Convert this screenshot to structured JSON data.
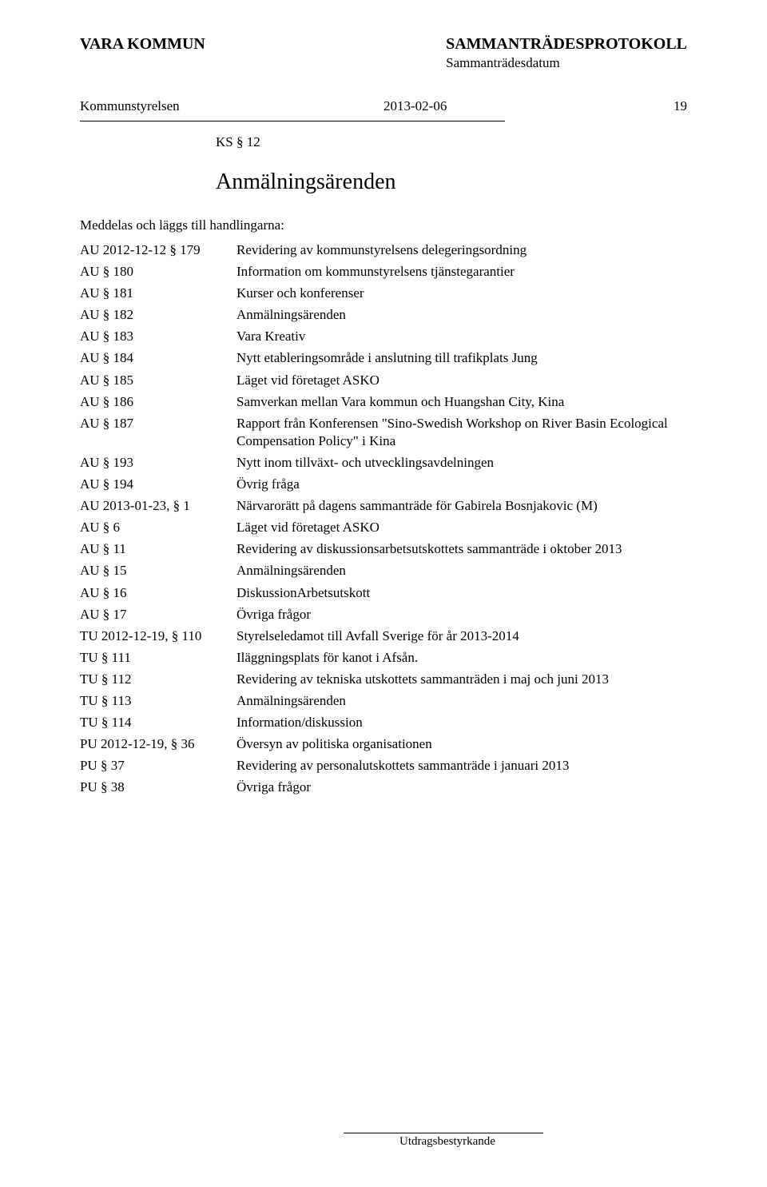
{
  "header": {
    "org": "VARA KOMMUN",
    "doc_type": "SAMMANTRÄDESPROTOKOLL",
    "doc_sub": "Sammanträdesdatum"
  },
  "meta": {
    "committee": "Kommunstyrelsen",
    "date": "2013-02-06",
    "page": "19"
  },
  "section_ref": "KS § 12",
  "title": "Anmälningsärenden",
  "intro": "Meddelas och läggs till handlingarna:",
  "items": [
    {
      "ref": "AU 2012-12-12 § 179",
      "subj": "Revidering av kommunstyrelsens delegeringsordning"
    },
    {
      "ref": "AU § 180",
      "subj": "Information om kommunstyrelsens tjänstegarantier"
    },
    {
      "ref": "AU § 181",
      "subj": "Kurser och konferenser"
    },
    {
      "ref": "AU § 182",
      "subj": "Anmälningsärenden"
    },
    {
      "ref": "AU § 183",
      "subj": "Vara Kreativ"
    },
    {
      "ref": "AU § 184",
      "subj": "Nytt etableringsområde i anslutning till trafikplats Jung"
    },
    {
      "ref": "AU § 185",
      "subj": "Läget vid företaget ASKO"
    },
    {
      "ref": "AU § 186",
      "subj": "Samverkan mellan Vara kommun och Huangshan City, Kina"
    },
    {
      "ref": "AU § 187",
      "subj": "Rapport från Konferensen \"Sino-Swedish Workshop on River Basin Ecological Compensation Policy\" i Kina"
    },
    {
      "ref": "AU § 193",
      "subj": "Nytt inom tillväxt- och utvecklingsavdelningen"
    },
    {
      "ref": "AU § 194",
      "subj": "Övrig fråga"
    },
    {
      "ref": "AU 2013-01-23, § 1",
      "subj": "Närvarorätt på dagens sammanträde för Gabirela Bosnjakovic (M)"
    },
    {
      "ref": "AU § 6",
      "subj": "Läget vid företaget ASKO"
    },
    {
      "ref": "AU § 11",
      "subj": "Revidering av diskussionsarbetsutskottets sammanträde i oktober 2013"
    },
    {
      "ref": "AU § 15",
      "subj": "Anmälningsärenden"
    },
    {
      "ref": "AU § 16",
      "subj": "DiskussionArbetsutskott"
    },
    {
      "ref": "AU § 17",
      "subj": "Övriga frågor"
    },
    {
      "ref": "TU 2012-12-19, § 110",
      "subj": "Styrelseledamot till Avfall Sverige för år 2013-2014"
    },
    {
      "ref": "TU § 111",
      "subj": "Iläggningsplats för kanot i Afsån."
    },
    {
      "ref": "TU § 112",
      "subj": "Revidering av tekniska utskottets sammanträden i maj och juni 2013"
    },
    {
      "ref": "TU § 113",
      "subj": "Anmälningsärenden"
    },
    {
      "ref": "TU § 114",
      "subj": "Information/diskussion"
    },
    {
      "ref": "PU 2012-12-19, § 36",
      "subj": "Översyn av politiska organisationen"
    },
    {
      "ref": "PU § 37",
      "subj": "Revidering av personalutskottets sammanträde i januari 2013"
    },
    {
      "ref": "PU § 38",
      "subj": "Övriga frågor"
    }
  ],
  "footer": "Utdragsbestyrkande"
}
